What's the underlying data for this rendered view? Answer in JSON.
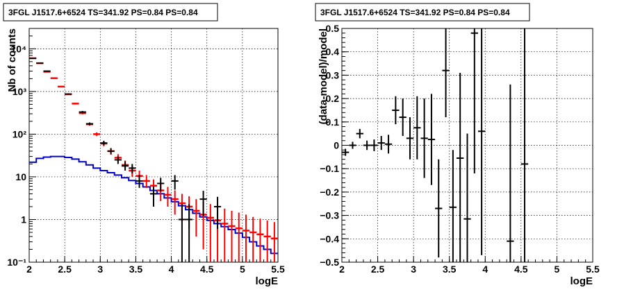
{
  "chart_data": [
    {
      "type": "histogram",
      "title": "3FGL J1517.6+6524 TS=341.92 PS=0.84 PS=0.84",
      "xlabel": "logE",
      "ylabel": "Nb of counts",
      "xlim": [
        2,
        5.5
      ],
      "ylim": [
        0.1,
        30000
      ],
      "yscale": "log",
      "grid": true,
      "xticks": [
        "2",
        "2.5",
        "3",
        "3.5",
        "4",
        "4.5",
        "5",
        "5.5"
      ],
      "yticks": [
        "10⁻¹",
        "1",
        "10",
        "10²",
        "10³",
        "10⁴"
      ],
      "bin_width": 0.1,
      "series": [
        {
          "color": "#000000",
          "style": "data-errorbars",
          "points": [
            {
              "x": 2.05,
              "y": 6000,
              "lo": 5900,
              "hi": 6100
            },
            {
              "x": 2.15,
              "y": 4600,
              "lo": 4500,
              "hi": 4700
            },
            {
              "x": 2.25,
              "y": 3000,
              "lo": 2900,
              "hi": 3100
            },
            {
              "x": 2.55,
              "y": 870,
              "lo": 840,
              "hi": 900
            },
            {
              "x": 2.75,
              "y": 330,
              "lo": 310,
              "hi": 350
            },
            {
              "x": 2.85,
              "y": 175,
              "lo": 162,
              "hi": 188
            },
            {
              "x": 3.05,
              "y": 62,
              "lo": 55,
              "hi": 70
            },
            {
              "x": 3.15,
              "y": 40,
              "lo": 34,
              "hi": 47
            },
            {
              "x": 3.25,
              "y": 25,
              "lo": 20,
              "hi": 30
            },
            {
              "x": 3.35,
              "y": 18,
              "lo": 14,
              "hi": 23
            },
            {
              "x": 3.45,
              "y": 16,
              "lo": 12,
              "hi": 20
            },
            {
              "x": 3.55,
              "y": 8,
              "lo": 5.5,
              "hi": 11
            },
            {
              "x": 3.75,
              "y": 4,
              "lo": 2,
              "hi": 6
            },
            {
              "x": 3.85,
              "y": 7,
              "lo": 4.5,
              "hi": 9.5
            },
            {
              "x": 4.05,
              "y": 8,
              "lo": 5,
              "hi": 11
            },
            {
              "x": 4.15,
              "y": 1,
              "lo": 0.1,
              "hi": 2.3
            },
            {
              "x": 4.25,
              "y": 1,
              "lo": 0.1,
              "hi": 2.3
            },
            {
              "x": 4.45,
              "y": 3,
              "lo": 1.2,
              "hi": 4.7
            },
            {
              "x": 4.65,
              "y": 2,
              "lo": 0.6,
              "hi": 3.4
            }
          ]
        },
        {
          "color": "#ff0000",
          "style": "model-errorbars",
          "points": [
            {
              "x": 2.05,
              "y": 6000,
              "lo": 5850,
              "hi": 6150
            },
            {
              "x": 2.15,
              "y": 4600,
              "lo": 4480,
              "hi": 4720
            },
            {
              "x": 2.25,
              "y": 2900,
              "lo": 2800,
              "hi": 3000
            },
            {
              "x": 2.35,
              "y": 2050,
              "lo": 1980,
              "hi": 2120
            },
            {
              "x": 2.45,
              "y": 1300,
              "lo": 1250,
              "hi": 1350
            },
            {
              "x": 2.55,
              "y": 860,
              "lo": 830,
              "hi": 890
            },
            {
              "x": 2.65,
              "y": 520,
              "lo": 495,
              "hi": 545
            },
            {
              "x": 2.75,
              "y": 310,
              "lo": 292,
              "hi": 328
            },
            {
              "x": 2.85,
              "y": 170,
              "lo": 158,
              "hi": 182
            },
            {
              "x": 2.95,
              "y": 100,
              "lo": 90,
              "hi": 110
            },
            {
              "x": 3.05,
              "y": 60,
              "lo": 52,
              "hi": 68
            },
            {
              "x": 3.15,
              "y": 40,
              "lo": 33,
              "hi": 47
            },
            {
              "x": 3.25,
              "y": 28,
              "lo": 23,
              "hi": 34
            },
            {
              "x": 3.35,
              "y": 19,
              "lo": 15,
              "hi": 24
            },
            {
              "x": 3.45,
              "y": 14,
              "lo": 10,
              "hi": 18
            },
            {
              "x": 3.55,
              "y": 10.5,
              "lo": 7.5,
              "hi": 14
            },
            {
              "x": 3.65,
              "y": 8,
              "lo": 5.5,
              "hi": 11
            },
            {
              "x": 3.75,
              "y": 6.2,
              "lo": 4,
              "hi": 8.7
            },
            {
              "x": 3.85,
              "y": 4.8,
              "lo": 2.7,
              "hi": 7
            },
            {
              "x": 3.95,
              "y": 3.8,
              "lo": 2,
              "hi": 5.8
            },
            {
              "x": 4.05,
              "y": 3,
              "lo": 1.3,
              "hi": 4.8
            },
            {
              "x": 4.15,
              "y": 2.4,
              "lo": 0.9,
              "hi": 4
            },
            {
              "x": 4.25,
              "y": 2,
              "lo": 0.6,
              "hi": 3.5
            },
            {
              "x": 4.35,
              "y": 1.6,
              "lo": 0.4,
              "hi": 3
            },
            {
              "x": 4.45,
              "y": 1.3,
              "lo": 0.2,
              "hi": 2.6
            },
            {
              "x": 4.55,
              "y": 1.1,
              "lo": 0.1,
              "hi": 2.3
            },
            {
              "x": 4.65,
              "y": 0.95,
              "lo": 0.1,
              "hi": 2
            },
            {
              "x": 4.75,
              "y": 0.8,
              "lo": 0.1,
              "hi": 1.8
            },
            {
              "x": 4.85,
              "y": 0.7,
              "lo": 0.1,
              "hi": 1.6
            },
            {
              "x": 4.95,
              "y": 0.62,
              "lo": 0.1,
              "hi": 1.45
            },
            {
              "x": 5.05,
              "y": 0.55,
              "lo": 0.1,
              "hi": 1.3
            },
            {
              "x": 5.15,
              "y": 0.5,
              "lo": 0.1,
              "hi": 1.15
            },
            {
              "x": 5.25,
              "y": 0.45,
              "lo": 0.1,
              "hi": 1.05
            },
            {
              "x": 5.35,
              "y": 0.4,
              "lo": 0.1,
              "hi": 0.95
            },
            {
              "x": 5.45,
              "y": 0.36,
              "lo": 0.1,
              "hi": 0.87
            }
          ]
        },
        {
          "color": "#0000cc",
          "style": "step",
          "values": [
            22,
            27,
            29,
            30,
            30,
            28.5,
            26,
            22.5,
            19,
            16,
            14,
            12.5,
            11,
            9.5,
            8.2,
            7,
            5.8,
            4.8,
            4,
            3.2,
            2.6,
            2.1,
            1.7,
            1.4,
            1.15,
            0.95,
            0.8,
            0.68,
            0.58,
            0.48,
            0.38,
            0.3,
            0.24,
            0.2,
            0.16
          ]
        }
      ]
    },
    {
      "type": "scatter",
      "title": "3FGL J1517.6+6524 TS=341.92 PS=0.84 PS=0.84",
      "xlabel": "logE",
      "ylabel": "(data-model)/model",
      "xlim": [
        2,
        5.5
      ],
      "ylim": [
        -0.5,
        0.5
      ],
      "grid": true,
      "xticks": [
        "2",
        "2.5",
        "3",
        "3.5",
        "4",
        "4.5",
        "5",
        "5.5"
      ],
      "yticks": [
        "−0.5",
        "−0.4",
        "−0.3",
        "−0.2",
        "−0.1",
        "0",
        "0.1",
        "0.2",
        "0.3",
        "0.4",
        "0.5"
      ],
      "bin_width": 0.1,
      "series": [
        {
          "color": "#000000",
          "style": "errorbars",
          "points": [
            {
              "x": 2.05,
              "y": -0.03,
              "lo": -0.045,
              "hi": -0.015
            },
            {
              "x": 2.15,
              "y": 0.0,
              "lo": -0.015,
              "hi": 0.015
            },
            {
              "x": 2.25,
              "y": 0.05,
              "lo": 0.03,
              "hi": 0.07
            },
            {
              "x": 2.35,
              "y": 0.0,
              "lo": -0.02,
              "hi": 0.02
            },
            {
              "x": 2.45,
              "y": 0.0,
              "lo": -0.025,
              "hi": 0.025
            },
            {
              "x": 2.55,
              "y": 0.01,
              "lo": -0.02,
              "hi": 0.04
            },
            {
              "x": 2.65,
              "y": 0.005,
              "lo": -0.035,
              "hi": 0.045
            },
            {
              "x": 2.75,
              "y": 0.15,
              "lo": 0.09,
              "hi": 0.21
            },
            {
              "x": 2.85,
              "y": 0.12,
              "lo": 0.04,
              "hi": 0.2
            },
            {
              "x": 2.95,
              "y": 0.03,
              "lo": -0.06,
              "hi": 0.12
            },
            {
              "x": 3.05,
              "y": 0.075,
              "lo": -0.06,
              "hi": 0.21
            },
            {
              "x": 3.15,
              "y": 0.03,
              "lo": -0.14,
              "hi": 0.2
            },
            {
              "x": 3.25,
              "y": 0.025,
              "lo": -0.17,
              "hi": 0.22
            },
            {
              "x": 3.35,
              "y": -0.27,
              "lo": -0.48,
              "hi": -0.06
            },
            {
              "x": 3.45,
              "y": 0.32,
              "lo": 0.12,
              "hi": 0.5
            },
            {
              "x": 3.55,
              "y": -0.265,
              "lo": -0.5,
              "hi": -0.02
            },
            {
              "x": 3.65,
              "y": -0.055,
              "lo": -0.5,
              "hi": 0.31
            },
            {
              "x": 3.75,
              "y": -0.315,
              "lo": -0.5,
              "hi": 0.05
            },
            {
              "x": 3.85,
              "y": 0.48,
              "lo": -0.12,
              "hi": 0.5
            },
            {
              "x": 3.95,
              "y": 0.06,
              "lo": -0.47,
              "hi": 0.5
            },
            {
              "x": 4.35,
              "y": -0.41,
              "lo": -0.5,
              "hi": 0.26
            },
            {
              "x": 4.55,
              "y": -0.08,
              "lo": -0.5,
              "hi": 0.5
            }
          ]
        }
      ]
    }
  ]
}
